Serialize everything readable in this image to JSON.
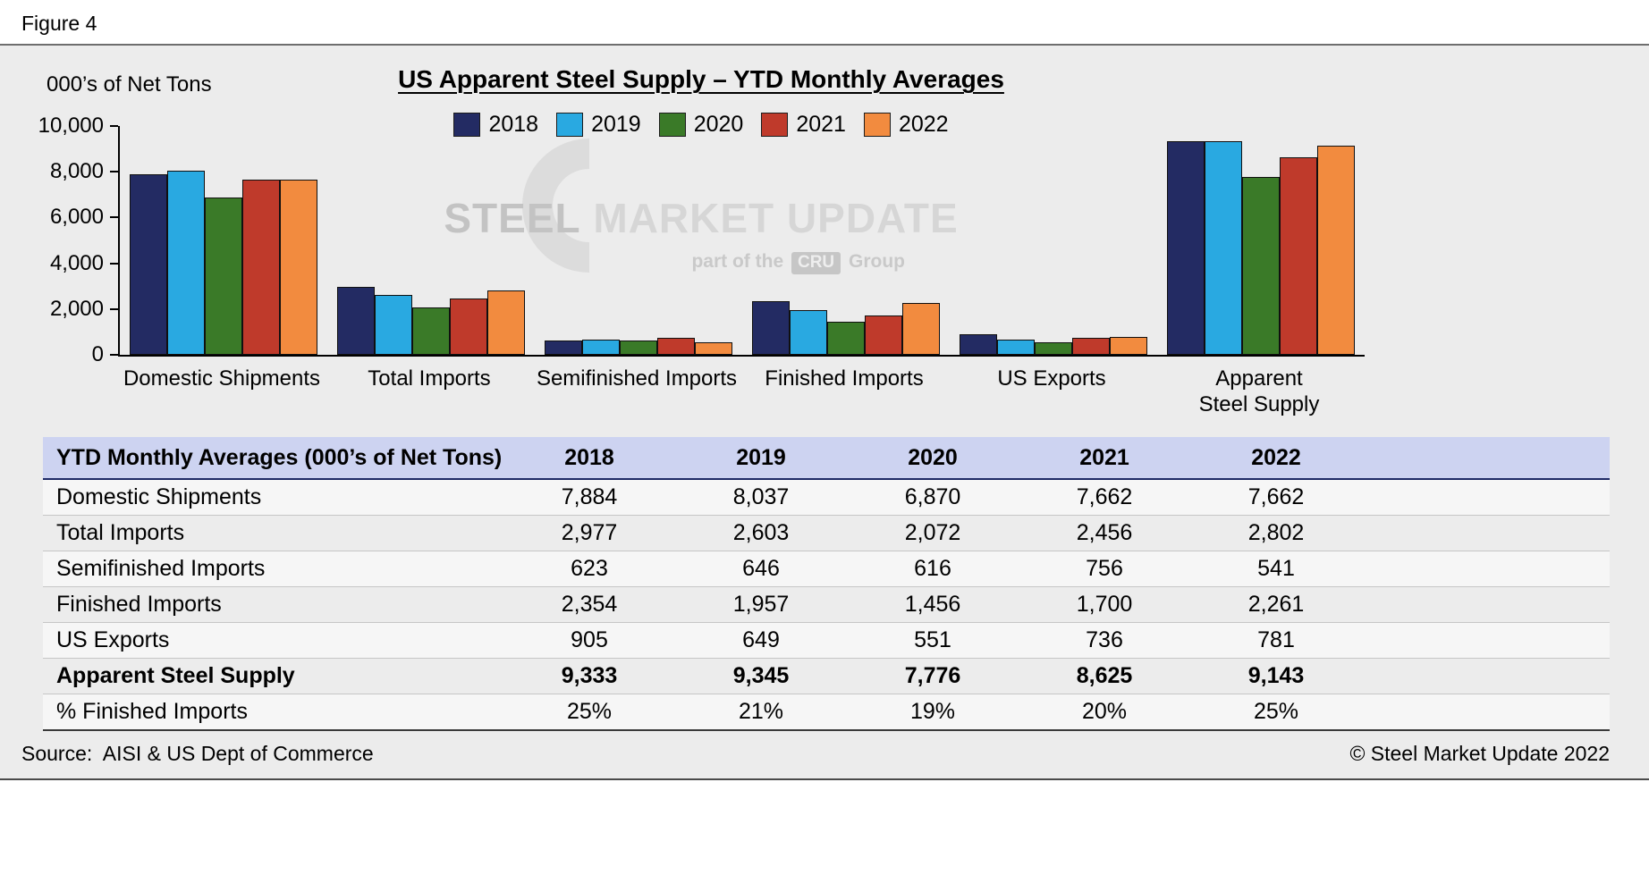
{
  "figure_label": "Figure 4",
  "chart": {
    "units_label": "000’s of Net Tons",
    "y_tick_labels": [
      "0",
      "2,000",
      "4,000",
      "6,000",
      "8,000",
      "10,000"
    ],
    "x_labels": [
      "Domestic Shipments",
      "Total Imports",
      "Semifinished Imports",
      "Finished Imports",
      "US Exports",
      "Apparent\nSteel Supply"
    ]
  },
  "chart_data": {
    "type": "bar",
    "title": "US Apparent Steel Supply – YTD Monthly Averages",
    "ylabel": "000’s of Net Tons",
    "ylim": [
      0,
      10000
    ],
    "y_tick_step": 2000,
    "legend_position": "top",
    "grid": false,
    "categories": [
      "Domestic Shipments",
      "Total Imports",
      "Semifinished Imports",
      "Finished Imports",
      "US Exports",
      "Apparent Steel Supply"
    ],
    "series": [
      {
        "name": "2018",
        "color": "#232B63",
        "values": [
          7884,
          2977,
          623,
          2354,
          905,
          9333
        ]
      },
      {
        "name": "2019",
        "color": "#29A9E1",
        "values": [
          8037,
          2603,
          646,
          1957,
          649,
          9345
        ]
      },
      {
        "name": "2020",
        "color": "#3A7A28",
        "values": [
          6870,
          2072,
          616,
          1456,
          551,
          7776
        ]
      },
      {
        "name": "2021",
        "color": "#BF3A2B",
        "values": [
          7662,
          2456,
          756,
          1700,
          736,
          8625
        ]
      },
      {
        "name": "2022",
        "color": "#F28B3F",
        "values": [
          7662,
          2802,
          541,
          2261,
          781,
          9143
        ]
      }
    ]
  },
  "watermark": {
    "brand_bold": "STEEL",
    "brand_rest": " MARKET UPDATE",
    "tagline_pre": "part of the",
    "tagline_box": "CRU",
    "tagline_post": "Group"
  },
  "table": {
    "title_header": "YTD Monthly Averages (000’s of Net Tons)",
    "year_headers": [
      "2018",
      "2019",
      "2020",
      "2021",
      "2022"
    ],
    "rows": [
      {
        "label": "Domestic Shipments",
        "values": [
          "7,884",
          "8,037",
          "6,870",
          "7,662",
          "7,662"
        ],
        "bold": false
      },
      {
        "label": "Total Imports",
        "values": [
          "2,977",
          "2,603",
          "2,072",
          "2,456",
          "2,802"
        ],
        "bold": false
      },
      {
        "label": "Semifinished Imports",
        "values": [
          "623",
          "646",
          "616",
          "756",
          "541"
        ],
        "bold": false
      },
      {
        "label": "Finished Imports",
        "values": [
          "2,354",
          "1,957",
          "1,456",
          "1,700",
          "2,261"
        ],
        "bold": false
      },
      {
        "label": "US Exports",
        "values": [
          "905",
          "649",
          "551",
          "736",
          "781"
        ],
        "bold": false
      },
      {
        "label": "Apparent Steel Supply",
        "values": [
          "9,333",
          "9,345",
          "7,776",
          "8,625",
          "9,143"
        ],
        "bold": true
      },
      {
        "label": "% Finished Imports",
        "values": [
          "25%",
          "21%",
          "19%",
          "20%",
          "25%"
        ],
        "bold": false
      }
    ]
  },
  "footer": {
    "source": "Source:  AISI & US Dept of Commerce",
    "copyright": "© Steel Market Update 2022"
  }
}
